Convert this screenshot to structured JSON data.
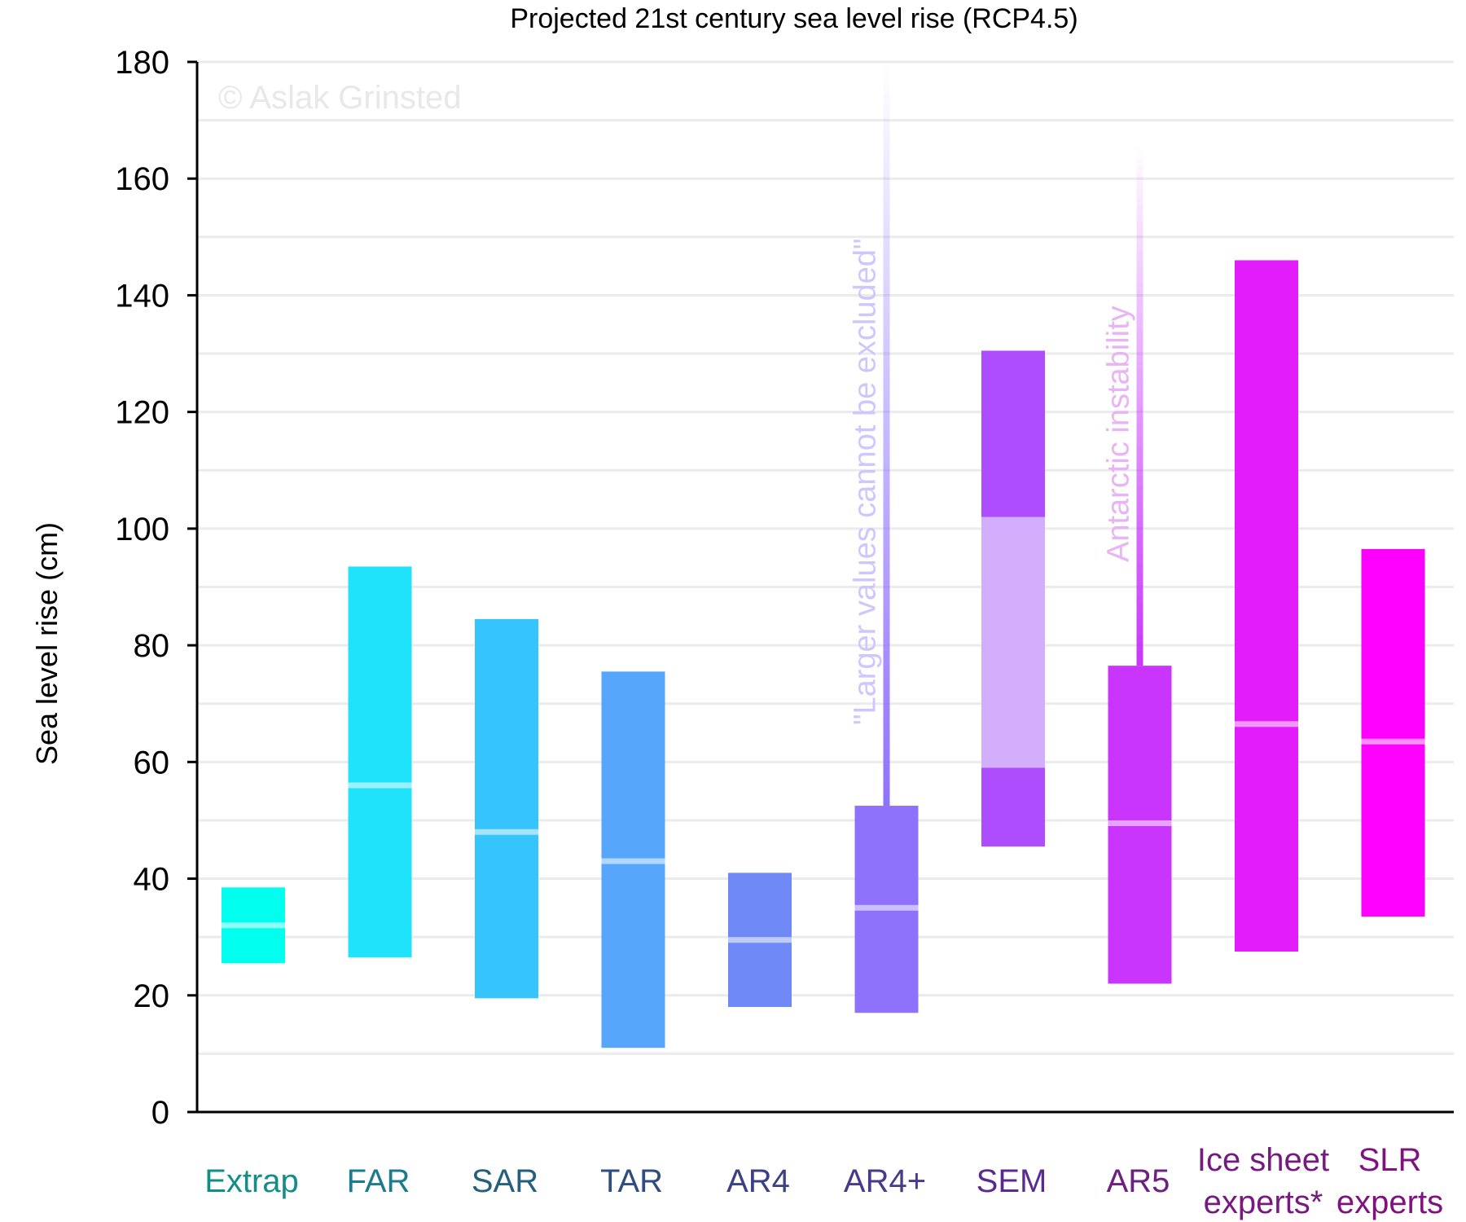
{
  "chart_data": {
    "type": "bar",
    "title": "Projected 21st century sea level rise  (RCP4.5)",
    "ylabel": "Sea level rise (cm)",
    "ylim": [
      0,
      180
    ],
    "yticks": [
      0,
      20,
      40,
      60,
      80,
      100,
      120,
      140,
      160,
      180
    ],
    "grid": "horizontal",
    "watermark": "©  Aslak Grinsted",
    "categories": [
      {
        "label": [
          "Extrap"
        ],
        "low": 25.5,
        "high": 38.5,
        "median": 32,
        "color": "#00ffee",
        "label_color": "#138d87"
      },
      {
        "label": [
          "FAR"
        ],
        "low": 26.5,
        "high": 93.5,
        "median": 56,
        "color": "#1ee3fb",
        "label_color": "#1a7c8c"
      },
      {
        "label": [
          "SAR"
        ],
        "low": 19.5,
        "high": 84.5,
        "median": 48,
        "color": "#36c4fc",
        "label_color": "#245f7e"
      },
      {
        "label": [
          "TAR"
        ],
        "low": 11,
        "high": 75.5,
        "median": 43,
        "color": "#56a6fb",
        "label_color": "#2f4d80"
      },
      {
        "label": [
          "AR4"
        ],
        "low": 18,
        "high": 41,
        "median": 29.5,
        "color": "#6f8af7",
        "label_color": "#3c4183"
      },
      {
        "label": [
          "AR4+"
        ],
        "low": 17,
        "high": 52.5,
        "median": 35,
        "color": "#8f72fc",
        "label_color": "#4a3a8a",
        "whisker_top": 180,
        "annotation": "\"Larger values cannot be excluded\""
      },
      {
        "label": [
          "SEM"
        ],
        "low": 45.5,
        "high": 130.5,
        "median": null,
        "inner_low": 59,
        "inner_high": 102,
        "color": "#ad4dfd",
        "inner_color": "#d3aefc",
        "label_color": "#5a2b8e"
      },
      {
        "label": [
          "AR5"
        ],
        "low": 22,
        "high": 76.5,
        "median": 49.5,
        "color": "#c935fd",
        "label_color": "#6c2080",
        "whisker_top": 166,
        "annotation": "Antarctic instability"
      },
      {
        "label": [
          "Ice sheet",
          "experts*"
        ],
        "low": 27.5,
        "high": 146,
        "median": 66.5,
        "color": "#e31cfb",
        "label_color": "#751a7e"
      },
      {
        "label": [
          "SLR",
          "experts"
        ],
        "low": 33.5,
        "high": 96.5,
        "median": 63.5,
        "color": "#fe00fe",
        "label_color": "#80127f"
      }
    ]
  }
}
